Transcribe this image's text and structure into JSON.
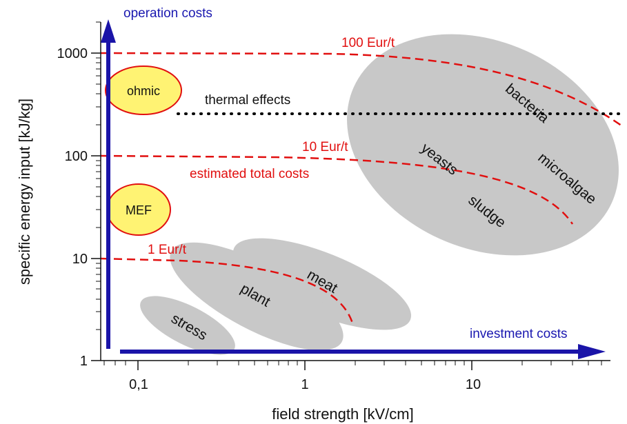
{
  "axes": {
    "x_title": "field strength [kV/cm]",
    "y_title": "specific energy input [kJ/kg]",
    "x_ticks": [
      "0,1",
      "1",
      "10"
    ],
    "y_ticks": [
      "1",
      "10",
      "100",
      "1000"
    ]
  },
  "arrows": {
    "vertical_label": "operation costs",
    "horizontal_label": "investment costs"
  },
  "cost_lines": {
    "line_100": "100 Eur/t",
    "line_10": "10 Eur/t",
    "line_1": "1 Eur/t",
    "estimated": "estimated total costs"
  },
  "thermal": "thermal effects",
  "regions": {
    "ohmic": "ohmic",
    "mef": "MEF",
    "bacteria": "bacteria",
    "microalgae": "microalgae",
    "yeasts": "yeasts",
    "sludge": "sludge",
    "meat": "meat",
    "plant": "plant",
    "stress": "stress"
  },
  "colors": {
    "arrow": "#1a14a8",
    "cost_lines": "#e10f0f",
    "regions": "#c8c8c8",
    "bubble_fill": "#fff373",
    "bubble_stroke": "#e10f0f",
    "thermal_line": "#000000"
  }
}
